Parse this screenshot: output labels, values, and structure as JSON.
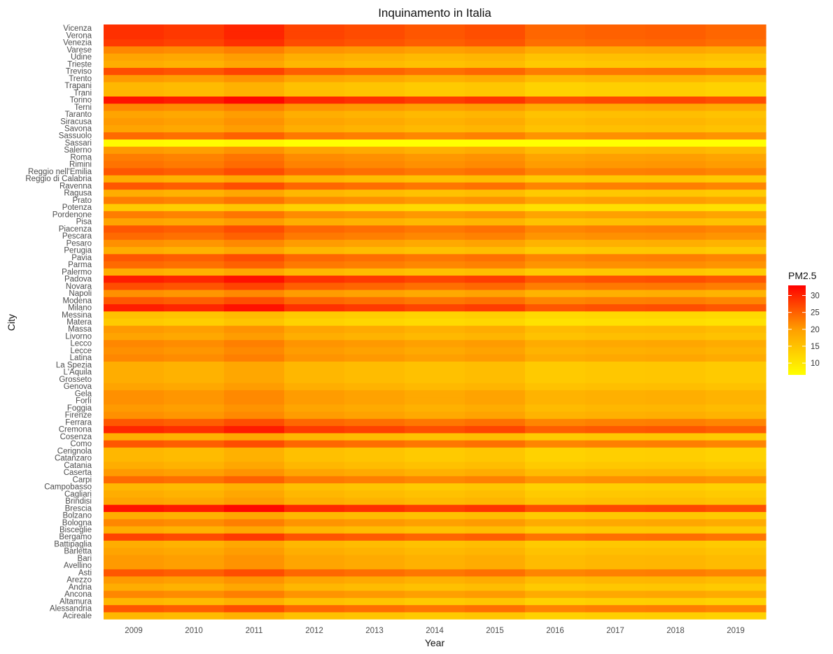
{
  "chart_data": {
    "type": "heatmap",
    "title": "Inquinamento in Italia",
    "xlabel": "Year",
    "ylabel": "City",
    "grid": false,
    "legend": {
      "title": "PM2.5",
      "position": "right",
      "ticks": [
        10,
        15,
        20,
        25,
        30
      ],
      "range": [
        6.5,
        33
      ],
      "colors": [
        "#ffff00",
        "#ff0000"
      ]
    },
    "x": [
      "2009",
      "2010",
      "2011",
      "2012",
      "2013",
      "2014",
      "2015",
      "2016",
      "2017",
      "2018",
      "2019"
    ],
    "cities": [
      "Acireale",
      "Alessandria",
      "Altamura",
      "Ancona",
      "Andria",
      "Arezzo",
      "Asti",
      "Avellino",
      "Bari",
      "Barletta",
      "Battipaglia",
      "Bergamo",
      "Bisceglie",
      "Bologna",
      "Bolzano",
      "Brescia",
      "Brindisi",
      "Cagliari",
      "Campobasso",
      "Carpi",
      "Caserta",
      "Catania",
      "Catanzaro",
      "Cerignola",
      "Como",
      "Cosenza",
      "Cremona",
      "Ferrara",
      "Firenze",
      "Foggia",
      "Forlì",
      "Gela",
      "Genova",
      "Grosseto",
      "L'Aquila",
      "La Spezia",
      "Latina",
      "Lecce",
      "Lecco",
      "Livorno",
      "Massa",
      "Matera",
      "Messina",
      "Milano",
      "Modena",
      "Napoli",
      "Novara",
      "Padova",
      "Palermo",
      "Parma",
      "Pavia",
      "Perugia",
      "Pesaro",
      "Pescara",
      "Piacenza",
      "Pisa",
      "Pordenone",
      "Potenza",
      "Prato",
      "Ragusa",
      "Ravenna",
      "Reggio di Calabria",
      "Reggio nell'Emilia",
      "Rimini",
      "Roma",
      "Salerno",
      "Sassari",
      "Sassuolo",
      "Savona",
      "Siracusa",
      "Taranto",
      "Terni",
      "Torino",
      "Trani",
      "Trapani",
      "Trento",
      "Treviso",
      "Trieste",
      "Udine",
      "Varese",
      "Venezia",
      "Verona",
      "Vicenza"
    ],
    "base_2009": [
      14,
      24,
      14,
      19,
      15,
      17,
      24,
      17,
      17,
      16,
      15,
      26,
      15,
      19,
      15,
      31,
      16,
      15,
      14,
      22,
      17,
      15,
      14,
      14,
      24,
      15,
      29,
      24,
      18,
      17,
      18,
      18,
      16,
      15,
      15,
      15,
      19,
      18,
      19,
      16,
      17,
      12,
      13,
      30,
      24,
      18,
      25,
      30,
      15,
      22,
      24,
      15,
      18,
      22,
      24,
      16,
      20,
      12,
      20,
      15,
      24,
      15,
      24,
      21,
      20,
      17,
      7,
      22,
      16,
      17,
      16,
      19,
      31,
      14,
      14,
      17,
      25,
      15,
      16,
      19,
      27,
      28,
      28
    ],
    "year_factors": [
      1.0,
      0.97,
      1.04,
      0.93,
      0.9,
      0.86,
      0.89,
      0.8,
      0.82,
      0.83,
      0.8
    ]
  }
}
